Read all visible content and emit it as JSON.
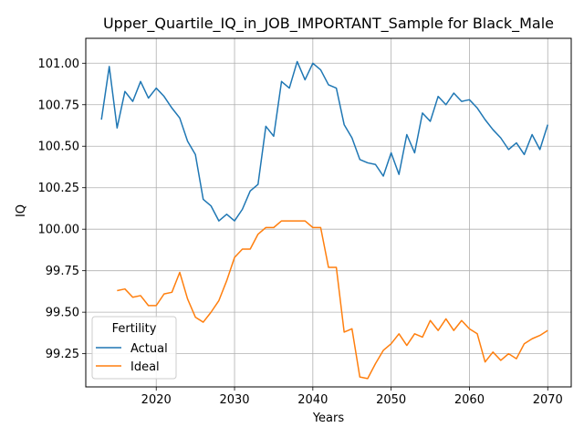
{
  "chart_data": {
    "type": "line",
    "title": "Upper_Quartile_IQ_in_JOB_IMPORTANT_Sample for Black_Male",
    "xlabel": "Years",
    "ylabel": "IQ",
    "xlim": [
      2011,
      2073
    ],
    "ylim": [
      99.05,
      101.15
    ],
    "xticks": [
      2020,
      2030,
      2040,
      2050,
      2060,
      2070
    ],
    "yticks": [
      99.25,
      99.5,
      99.75,
      100.0,
      100.25,
      100.5,
      100.75,
      101.0
    ],
    "ytick_labels": [
      "99.25",
      "99.50",
      "99.75",
      "100.00",
      "100.25",
      "100.50",
      "100.75",
      "101.00"
    ],
    "grid": true,
    "legend": {
      "title": "Fertility",
      "placement": "lower-left"
    },
    "series": [
      {
        "name": "Actual",
        "color": "#1f77b4",
        "x": [
          2013,
          2014,
          2015,
          2016,
          2017,
          2018,
          2019,
          2020,
          2021,
          2022,
          2023,
          2024,
          2025,
          2026,
          2027,
          2028,
          2029,
          2030,
          2031,
          2032,
          2033,
          2034,
          2035,
          2036,
          2037,
          2038,
          2039,
          2040,
          2041,
          2042,
          2043,
          2044,
          2045,
          2046,
          2047,
          2048,
          2049,
          2050,
          2051,
          2052,
          2053,
          2054,
          2055,
          2056,
          2057,
          2058,
          2059,
          2060,
          2061,
          2062,
          2063,
          2064,
          2065,
          2066,
          2067,
          2068,
          2069,
          2070
        ],
        "values": [
          100.66,
          100.98,
          100.61,
          100.83,
          100.77,
          100.89,
          100.79,
          100.85,
          100.8,
          100.73,
          100.67,
          100.53,
          100.45,
          100.18,
          100.14,
          100.05,
          100.09,
          100.05,
          100.12,
          100.23,
          100.27,
          100.62,
          100.56,
          100.89,
          100.85,
          101.01,
          100.9,
          101.0,
          100.96,
          100.87,
          100.85,
          100.63,
          100.55,
          100.42,
          100.4,
          100.39,
          100.32,
          100.46,
          100.33,
          100.57,
          100.46,
          100.7,
          100.65,
          100.8,
          100.75,
          100.82,
          100.77,
          100.78,
          100.73,
          100.66,
          100.6,
          100.55,
          100.48,
          100.52,
          100.45,
          100.57,
          100.48,
          100.63
        ]
      },
      {
        "name": "Ideal",
        "color": "#ff7f0e",
        "x": [
          2015,
          2016,
          2017,
          2018,
          2019,
          2020,
          2021,
          2022,
          2023,
          2024,
          2025,
          2026,
          2027,
          2028,
          2029,
          2030,
          2031,
          2032,
          2033,
          2034,
          2035,
          2036,
          2037,
          2038,
          2039,
          2040,
          2041,
          2042,
          2043,
          2044,
          2045,
          2046,
          2047,
          2048,
          2049,
          2050,
          2051,
          2052,
          2053,
          2054,
          2055,
          2056,
          2057,
          2058,
          2059,
          2060,
          2061,
          2062,
          2063,
          2064,
          2065,
          2066,
          2067,
          2068,
          2069,
          2070
        ],
        "values": [
          99.63,
          99.64,
          99.59,
          99.6,
          99.54,
          99.54,
          99.61,
          99.62,
          99.74,
          99.58,
          99.47,
          99.44,
          99.5,
          99.57,
          99.69,
          99.83,
          99.88,
          99.88,
          99.97,
          100.01,
          100.01,
          100.05,
          100.05,
          100.05,
          100.05,
          100.01,
          100.01,
          99.77,
          99.77,
          99.38,
          99.4,
          99.11,
          99.1,
          99.19,
          99.27,
          99.31,
          99.37,
          99.3,
          99.37,
          99.35,
          99.45,
          99.39,
          99.46,
          99.39,
          99.45,
          99.4,
          99.37,
          99.2,
          99.26,
          99.21,
          99.25,
          99.22,
          99.31,
          99.34,
          99.36,
          99.39
        ]
      }
    ]
  }
}
